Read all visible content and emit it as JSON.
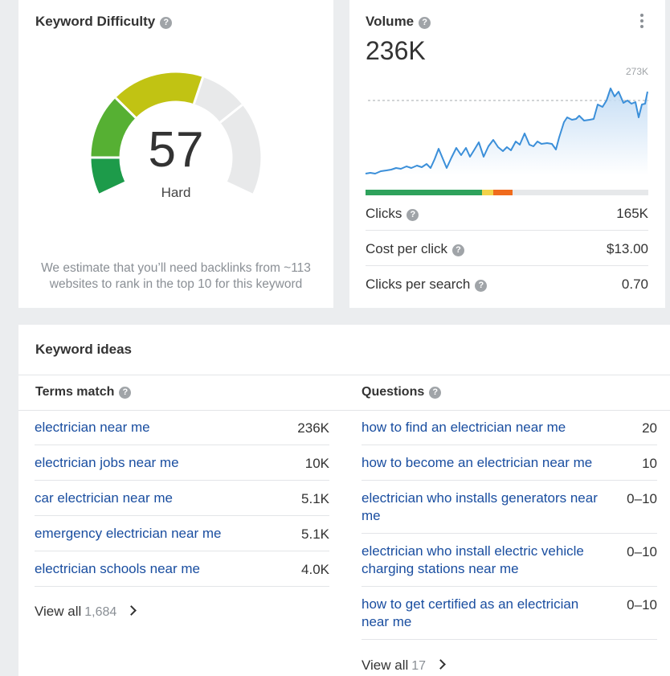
{
  "keyword_difficulty": {
    "title": "Keyword Difficulty",
    "help": "?",
    "value": "57",
    "label": "Hard",
    "estimate": "We estimate that you’ll need backlinks from ~113 websites to rank in the top 10 for this keyword"
  },
  "volume": {
    "title": "Volume",
    "help": "?",
    "value": "236K",
    "chart_peak_label": "273K",
    "menu_icon": "more-vertical-icon",
    "click_split": {
      "organic": 0.41,
      "paid": 0.04,
      "other": 0.07
    },
    "colors": {
      "organic": "#2ea25c",
      "paid": "#f2d24a",
      "other": "#f06b1c",
      "line": "#3b8fd9"
    },
    "metrics": [
      {
        "label": "Clicks",
        "value": "165K"
      },
      {
        "label": "Cost per click",
        "value": "$13.00"
      },
      {
        "label": "Clicks per search",
        "value": "0.70"
      }
    ]
  },
  "keyword_ideas": {
    "title": "Keyword ideas",
    "terms_match": {
      "heading": "Terms match",
      "rows": [
        {
          "keyword": "electrician near me",
          "value": "236K"
        },
        {
          "keyword": "electrician jobs near me",
          "value": "10K"
        },
        {
          "keyword": "car electrician near me",
          "value": "5.1K"
        },
        {
          "keyword": "emergency electrician near me",
          "value": "5.1K"
        },
        {
          "keyword": "electrician schools near me",
          "value": "4.0K"
        }
      ],
      "view_all": "View all",
      "view_all_count": "1,684"
    },
    "questions": {
      "heading": "Questions",
      "rows": [
        {
          "keyword": "how to find an electrician near me",
          "value": "20"
        },
        {
          "keyword": "how to become an electrician near me",
          "value": "10"
        },
        {
          "keyword": "electrician who installs generators near me",
          "value": "0–10"
        },
        {
          "keyword": "electrician who install electric vehicle charging stations near me",
          "value": "0–10"
        },
        {
          "keyword": "how to get certified as an electrician near me",
          "value": "0–10"
        }
      ],
      "view_all": "View all",
      "view_all_count": "17"
    }
  }
}
